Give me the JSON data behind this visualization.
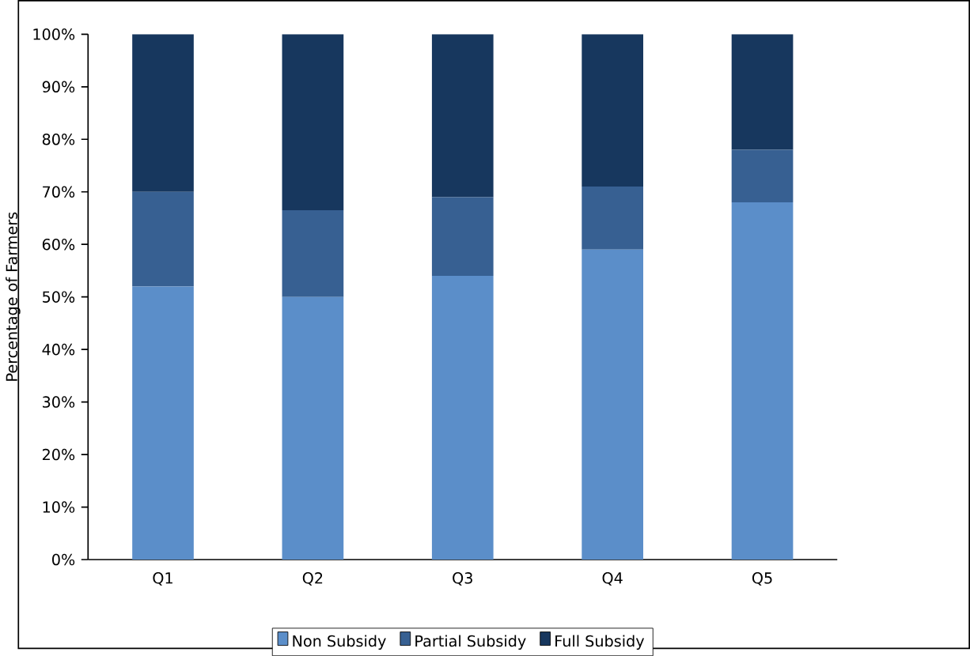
{
  "chart_data": {
    "type": "bar",
    "stacked": true,
    "ylabel": "Percentage of Farmers",
    "categories": [
      "Q1",
      "Q2",
      "Q3",
      "Q4",
      "Q5"
    ],
    "series": [
      {
        "name": "Non Subsidy",
        "color": "#5b8ec9",
        "values": [
          52,
          50,
          54,
          59,
          68
        ]
      },
      {
        "name": "Partial Subsidy",
        "color": "#376092",
        "values": [
          18,
          16.5,
          15,
          12,
          10
        ]
      },
      {
        "name": "Full Subsidy",
        "color": "#17375e",
        "values": [
          30,
          33.5,
          31,
          29,
          22
        ]
      }
    ],
    "ylim": [
      0,
      100
    ],
    "yticks": [
      {
        "value": 0,
        "label": "0%"
      },
      {
        "value": 10,
        "label": "10%"
      },
      {
        "value": 20,
        "label": "20%"
      },
      {
        "value": 30,
        "label": "30%"
      },
      {
        "value": 40,
        "label": "40%"
      },
      {
        "value": 50,
        "label": "50%"
      },
      {
        "value": 60,
        "label": "60%"
      },
      {
        "value": 70,
        "label": "70%"
      },
      {
        "value": 80,
        "label": "80%"
      },
      {
        "value": 90,
        "label": "90%"
      },
      {
        "value": 100,
        "label": "100%"
      }
    ],
    "grid": false,
    "legend": "bottom"
  }
}
